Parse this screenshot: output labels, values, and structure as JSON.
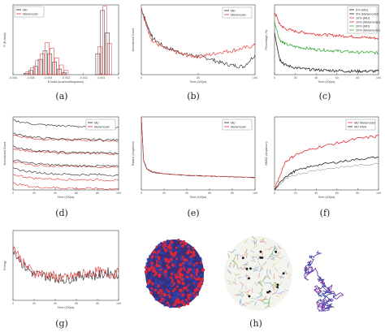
{
  "captions": [
    "(a)",
    "(b)",
    "(c)",
    "(d)",
    "(e)",
    "(f)",
    "(g)",
    "(h)"
  ],
  "colors": {
    "md": "#222222",
    "metamodel": "#e03030",
    "green": "#3aa83a",
    "grid": "#bbbbbb"
  },
  "panel_a": {
    "xlabel": "E-bead (kcal/mol/Angstrom)",
    "ylabel": "P (E-bead)",
    "xticks": [
      "-0.006",
      "-0.005",
      "-0.004",
      "-0.003",
      "-0.002",
      "-0.001",
      "0"
    ],
    "legend": [
      "MD",
      "Metamodel"
    ]
  },
  "panel_b": {
    "xlabel": "Time (100ps)",
    "ylabel": "Normalized Count",
    "xticks": [
      "0",
      "50",
      "100"
    ],
    "legend": [
      "MD",
      "Metamodel"
    ]
  },
  "panel_c": {
    "xlabel": "Time (100ps)",
    "ylabel": "Percentage (%)",
    "xticks": [
      "0",
      "20",
      "40",
      "60",
      "80",
      "100"
    ],
    "legend": [
      "5% (MD)",
      "5% (Metamodel)",
      "10% (MD)",
      "10% (Metamodel)",
      "20% (MD)",
      "20% (Metamodel)"
    ]
  },
  "panel_d": {
    "xlabel": "Time (100ps)",
    "ylabel": "Normalized Count",
    "xticks": [
      "0",
      "20",
      "40",
      "60",
      "80",
      "100"
    ],
    "legend": [
      "MD",
      "Metamodel"
    ]
  },
  "panel_e": {
    "xlabel": "Time (100ps)",
    "ylabel": "Radius (Angstrom)",
    "xticks": [
      "0",
      "20",
      "40",
      "60",
      "80",
      "100"
    ],
    "legend": [
      "MD",
      "Metamodel"
    ]
  },
  "panel_f": {
    "xlabel": "Time (100ps)",
    "ylabel": "RMSD (Angstrom)",
    "xticks": [
      "0",
      "20",
      "40",
      "60",
      "80",
      "100"
    ],
    "legend": [
      "MD Metamodel",
      "MD RNA"
    ]
  },
  "panel_g": {
    "xlabel": "Time (100ps)",
    "ylabel": "Energy",
    "xticks": [
      "0",
      "20",
      "40",
      "60",
      "80",
      "100"
    ]
  },
  "chart_data": [
    {
      "type": "bar",
      "title": "",
      "xlabel": "E-bead (kcal/mol/Angstrom)",
      "ylabel": "P (E-bead)",
      "series": [
        {
          "name": "MD",
          "x": [
            -0.0055,
            -0.0052,
            -0.0049,
            -0.0046,
            -0.0043,
            -0.004,
            -0.0037,
            -0.0034,
            -0.0031,
            -0.001,
            -0.0007,
            -0.0004
          ],
          "values": [
            2,
            6,
            12,
            22,
            34,
            30,
            18,
            8,
            3,
            30,
            92,
            60
          ]
        },
        {
          "name": "Metamodel",
          "x": [
            -0.0055,
            -0.0052,
            -0.0049,
            -0.0046,
            -0.0043,
            -0.004,
            -0.0037,
            -0.0034,
            -0.0031,
            -0.001,
            -0.0007,
            -0.0004
          ],
          "values": [
            4,
            10,
            20,
            30,
            46,
            38,
            24,
            14,
            6,
            40,
            98,
            45
          ]
        }
      ]
    },
    {
      "type": "line",
      "xlabel": "Time (100ps)",
      "ylabel": "Normalized Count",
      "x": [
        0,
        5,
        10,
        20,
        30,
        40,
        50,
        60,
        70,
        80,
        90,
        100
      ],
      "series": [
        {
          "name": "MD",
          "values": [
            1.0,
            0.75,
            0.55,
            0.42,
            0.36,
            0.3,
            0.28,
            0.24,
            0.18,
            0.14,
            0.12,
            0.3
          ]
        },
        {
          "name": "Metamodel",
          "values": [
            1.0,
            0.7,
            0.5,
            0.4,
            0.34,
            0.29,
            0.27,
            0.3,
            0.34,
            0.36,
            0.4,
            0.44
          ]
        }
      ]
    },
    {
      "type": "line",
      "xlabel": "Time (100ps)",
      "ylabel": "Percentage (%)",
      "x": [
        0,
        5,
        10,
        20,
        30,
        40,
        50,
        60,
        70,
        80,
        90,
        100
      ],
      "series": [
        {
          "name": "20% (Metamodel)",
          "values": [
            90,
            72,
            66,
            62,
            60,
            58,
            57,
            56,
            55,
            54,
            53,
            52
          ]
        },
        {
          "name": "10% (Metamodel)",
          "values": [
            75,
            50,
            44,
            40,
            38,
            36,
            35,
            34,
            33,
            32,
            32,
            31
          ]
        },
        {
          "name": "5% (Metamodel)",
          "values": [
            60,
            22,
            14,
            10,
            8,
            7,
            6,
            6,
            5,
            5,
            5,
            5
          ]
        }
      ]
    },
    {
      "type": "line",
      "xlabel": "Time (100ps)",
      "ylabel": "Normalized Count",
      "x": [
        0,
        20,
        40,
        60,
        80,
        100
      ],
      "series": [
        {
          "name": "MD",
          "values": [
            0.95,
            0.9,
            0.88,
            0.87,
            0.87,
            0.86
          ]
        },
        {
          "name": "Metamodel",
          "values": [
            0.75,
            0.7,
            0.69,
            0.68,
            0.68,
            0.67
          ]
        }
      ]
    },
    {
      "type": "line",
      "xlabel": "Time (100ps)",
      "ylabel": "Radius (Angstrom)",
      "x": [
        0,
        2,
        5,
        10,
        20,
        40,
        60,
        80,
        100
      ],
      "series": [
        {
          "name": "MD",
          "values": [
            100,
            40,
            28,
            24,
            22,
            20,
            19,
            18,
            17
          ]
        },
        {
          "name": "Metamodel",
          "values": [
            100,
            41,
            29,
            25,
            22,
            20,
            19,
            18,
            17
          ]
        }
      ]
    },
    {
      "type": "line",
      "xlabel": "Time (100ps)",
      "ylabel": "RMSD (Angstrom)",
      "x": [
        0,
        10,
        20,
        40,
        60,
        80,
        100
      ],
      "series": [
        {
          "name": "MD Metamodel",
          "values": [
            0,
            38,
            48,
            58,
            64,
            70,
            74
          ]
        },
        {
          "name": "MD RNA",
          "values": [
            0,
            18,
            26,
            34,
            38,
            42,
            45
          ]
        }
      ]
    },
    {
      "type": "line",
      "xlabel": "Time (100ps)",
      "ylabel": "Energy",
      "x": [
        0,
        10,
        20,
        30,
        40,
        50,
        60,
        70,
        80,
        90,
        100
      ],
      "series": [
        {
          "name": "MD",
          "values": [
            60,
            40,
            30,
            28,
            26,
            24,
            27,
            30,
            28,
            32,
            29
          ]
        },
        {
          "name": "Metamodel",
          "values": [
            62,
            42,
            32,
            30,
            27,
            25,
            29,
            31,
            33,
            30,
            31
          ]
        }
      ]
    }
  ]
}
